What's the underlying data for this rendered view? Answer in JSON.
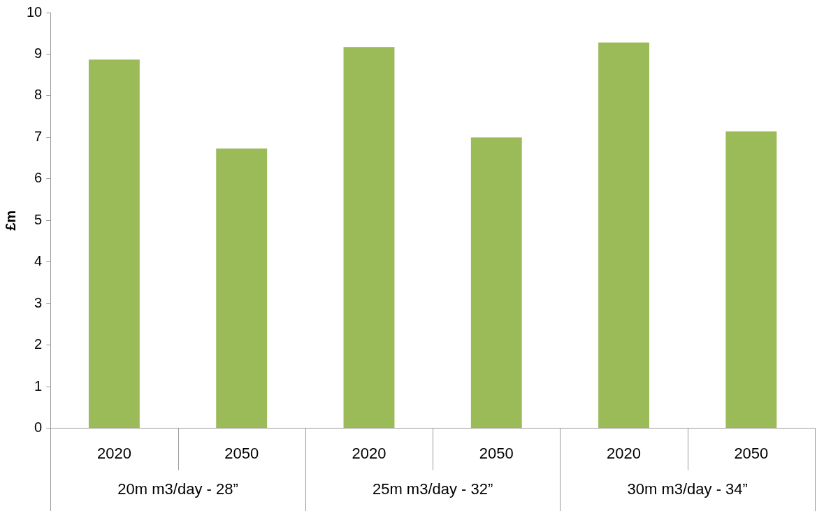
{
  "chart_data": {
    "type": "bar",
    "ylabel": "£m",
    "categories": [
      "2020",
      "2050",
      "2020",
      "2050",
      "2020",
      "2050"
    ],
    "values": [
      8.87,
      6.73,
      9.17,
      7.0,
      9.28,
      7.14
    ],
    "color": "#9bbb59",
    "ylim": [
      0,
      10
    ],
    "yticks": [
      0,
      1,
      2,
      3,
      4,
      5,
      6,
      7,
      8,
      9,
      10
    ],
    "grid": false,
    "legend": false,
    "annotations": [
      "20m m3/day - 28”",
      "25m m3/day - 32”",
      "30m m3/day - 34”"
    ]
  }
}
